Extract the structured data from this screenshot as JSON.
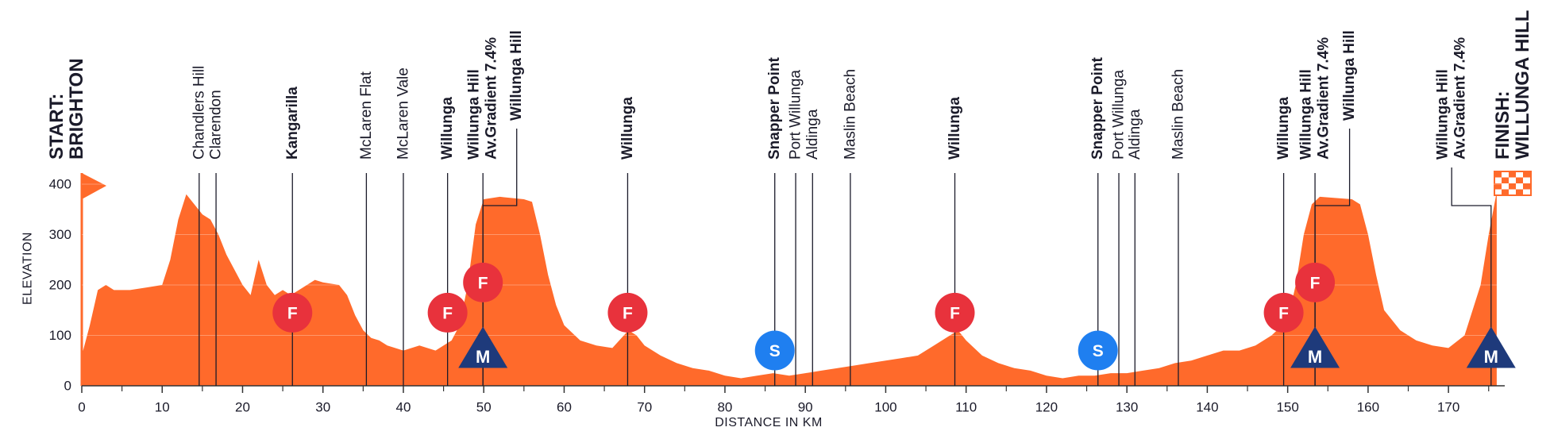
{
  "chart_data": {
    "type": "area",
    "color": "#ff6a2b",
    "xlabel": "DISTANCE IN KM",
    "ylabel": "ELEVATION",
    "xlim": [
      0,
      177
    ],
    "ylim": [
      0,
      400
    ],
    "xticks": [
      0,
      10,
      20,
      30,
      40,
      50,
      60,
      70,
      80,
      90,
      100,
      110,
      120,
      130,
      140,
      150,
      160,
      170
    ],
    "xticks_minor": [
      5,
      15,
      25,
      35,
      45,
      55,
      65,
      75,
      85,
      95,
      105,
      115,
      125,
      135,
      145,
      155,
      165,
      175
    ],
    "yticks": [
      0,
      100,
      200,
      300,
      400
    ],
    "grid": true,
    "x": [
      0,
      1,
      2,
      3,
      4,
      6,
      8,
      10,
      11,
      12,
      13,
      14,
      15,
      16,
      17,
      18,
      19,
      20,
      21,
      22,
      23,
      24,
      25,
      26,
      27,
      28,
      29,
      30,
      32,
      33,
      34,
      35,
      36,
      37,
      38,
      40,
      42,
      44,
      46,
      47,
      48,
      49,
      50,
      52,
      55,
      56,
      57,
      58,
      59,
      60,
      62,
      64,
      66,
      68,
      69,
      70,
      72,
      74,
      76,
      78,
      80,
      82,
      84,
      86,
      88,
      90,
      92,
      94,
      96,
      98,
      100,
      102,
      104,
      106,
      108,
      109,
      110,
      112,
      114,
      116,
      118,
      120,
      122,
      124,
      126,
      128,
      130,
      132,
      134,
      136,
      138,
      140,
      142,
      144,
      146,
      148,
      150,
      151,
      152,
      153,
      154,
      158,
      159,
      160,
      161,
      162,
      164,
      166,
      168,
      170,
      172,
      174,
      175,
      176
    ],
    "values": [
      60,
      120,
      190,
      200,
      190,
      190,
      195,
      200,
      250,
      330,
      380,
      360,
      340,
      330,
      300,
      260,
      230,
      200,
      180,
      250,
      200,
      180,
      190,
      180,
      190,
      200,
      210,
      205,
      200,
      180,
      140,
      110,
      95,
      90,
      80,
      70,
      80,
      70,
      90,
      120,
      200,
      320,
      370,
      375,
      370,
      365,
      300,
      220,
      160,
      120,
      90,
      80,
      75,
      110,
      100,
      80,
      60,
      45,
      35,
      30,
      20,
      15,
      20,
      25,
      20,
      25,
      30,
      35,
      40,
      45,
      50,
      55,
      60,
      80,
      100,
      110,
      90,
      60,
      45,
      35,
      30,
      20,
      15,
      20,
      20,
      25,
      25,
      30,
      35,
      45,
      50,
      60,
      70,
      70,
      80,
      100,
      130,
      200,
      300,
      360,
      375,
      370,
      360,
      300,
      220,
      150,
      110,
      90,
      80,
      75,
      100,
      200,
      300,
      385
    ],
    "landmarks": [
      {
        "km": 0,
        "lines": [
          "START:",
          "BRIGHTON"
        ],
        "bold": true
      },
      {
        "km": 14.6,
        "lines": [
          "Chandlers Hill"
        ],
        "bold": false
      },
      {
        "km": 16.7,
        "lines": [
          "Clarendon"
        ],
        "bold": false
      },
      {
        "km": 26.2,
        "lines": [
          "Kangarilla"
        ],
        "bold": true
      },
      {
        "km": 35.4,
        "lines": [
          "McLaren Flat"
        ],
        "bold": false
      },
      {
        "km": 40.0,
        "lines": [
          "McLaren Vale"
        ],
        "bold": false
      },
      {
        "km": 45.5,
        "lines": [
          "Willunga"
        ],
        "bold": true
      },
      {
        "km": 49.9,
        "lines": [
          "Willunga Hill",
          "Av.Gradient 7.4%"
        ],
        "bold": true
      },
      {
        "km": 49.9,
        "lines": [
          "Willunga Hill"
        ],
        "bold": true
      },
      {
        "km": 67.9,
        "lines": [
          "Willunga"
        ],
        "bold": true
      },
      {
        "km": 86.2,
        "lines": [
          "Snapper Point"
        ],
        "bold": true
      },
      {
        "km": 88.8,
        "lines": [
          "Port Willunga"
        ],
        "bold": false
      },
      {
        "km": 90.9,
        "lines": [
          "Aldinga"
        ],
        "bold": false
      },
      {
        "km": 95.6,
        "lines": [
          "Maslin Beach"
        ],
        "bold": false
      },
      {
        "km": 108.6,
        "lines": [
          "Willunga"
        ],
        "bold": true
      },
      {
        "km": 126.4,
        "lines": [
          "Snapper Point"
        ],
        "bold": true
      },
      {
        "km": 129.0,
        "lines": [
          "Port Willunga"
        ],
        "bold": false
      },
      {
        "km": 131.0,
        "lines": [
          "Aldinga"
        ],
        "bold": false
      },
      {
        "km": 136.4,
        "lines": [
          "Maslin Beach"
        ],
        "bold": false
      },
      {
        "km": 149.5,
        "lines": [
          "Willunga"
        ],
        "bold": true
      },
      {
        "km": 153.4,
        "lines": [
          "Willunga Hill",
          "Av.Gradient 7.4%"
        ],
        "bold": true
      },
      {
        "km": 153.4,
        "lines": [
          "Willunga Hill"
        ],
        "bold": true
      },
      {
        "km": 175.3,
        "lines": [
          "Willunga Hill",
          "Av.Gradient 7.4%"
        ],
        "bold": true
      },
      {
        "km": 176.3,
        "lines": [
          "FINISH:",
          "WILLUNGA HILL"
        ],
        "bold": true
      }
    ],
    "markers": [
      {
        "label": "F",
        "km": 26.2,
        "elevation": 145,
        "shape": "circle",
        "color": "#e8323c"
      },
      {
        "label": "F",
        "km": 45.5,
        "elevation": 145,
        "shape": "circle",
        "color": "#e8323c"
      },
      {
        "label": "F",
        "km": 49.9,
        "elevation": 205,
        "shape": "circle",
        "color": "#e8323c"
      },
      {
        "label": "M",
        "km": 49.9,
        "elevation": 70,
        "shape": "triangle",
        "color": "#1e3a7b"
      },
      {
        "label": "F",
        "km": 67.9,
        "elevation": 145,
        "shape": "circle",
        "color": "#e8323c"
      },
      {
        "label": "S",
        "km": 86.2,
        "elevation": 70,
        "shape": "circle",
        "color": "#1f7ff0"
      },
      {
        "label": "F",
        "km": 108.6,
        "elevation": 145,
        "shape": "circle",
        "color": "#e8323c"
      },
      {
        "label": "S",
        "km": 126.4,
        "elevation": 70,
        "shape": "circle",
        "color": "#1f7ff0"
      },
      {
        "label": "F",
        "km": 149.5,
        "elevation": 145,
        "shape": "circle",
        "color": "#e8323c"
      },
      {
        "label": "F",
        "km": 153.4,
        "elevation": 205,
        "shape": "circle",
        "color": "#e8323c"
      },
      {
        "label": "M",
        "km": 153.4,
        "elevation": 70,
        "shape": "triangle",
        "color": "#1e3a7b"
      },
      {
        "label": "M",
        "km": 175.3,
        "elevation": 70,
        "shape": "triangle",
        "color": "#1e3a7b"
      }
    ]
  }
}
